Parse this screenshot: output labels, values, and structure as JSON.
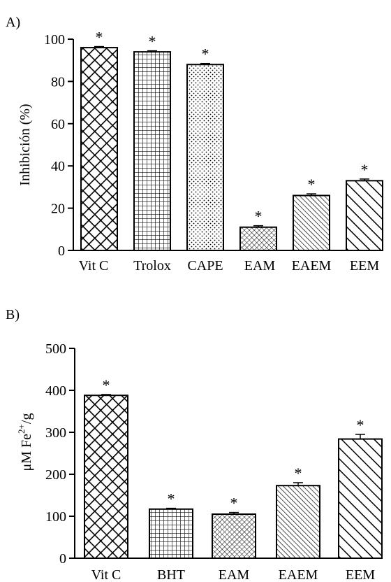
{
  "chart_data": [
    {
      "panel_label": "A)",
      "type": "bar",
      "ylabel": "Inhibición (%)",
      "ylim": [
        0,
        100
      ],
      "yticks": [
        0,
        20,
        40,
        60,
        80,
        100
      ],
      "categories": [
        "Vit C",
        "Trolox",
        "CAPE",
        "EAM",
        "EAEM",
        "EEM"
      ],
      "values": [
        96,
        94,
        88,
        11,
        26,
        33
      ],
      "errors": [
        0.5,
        0.5,
        0.5,
        0.7,
        0.8,
        0.8
      ],
      "significance": [
        "*",
        "*",
        "*",
        "*",
        "*",
        "*"
      ],
      "patterns": [
        "crosshatch",
        "grid",
        "dots",
        "fine-hatch",
        "diagonal-dense",
        "diagonal-wide"
      ]
    },
    {
      "panel_label": "B)",
      "type": "bar",
      "ylabel": "μM Fe2+/g",
      "ylabel_parts": {
        "base": "μM Fe",
        "sup": "2+",
        "tail": "/g"
      },
      "ylim": [
        0,
        500
      ],
      "yticks": [
        0,
        100,
        200,
        300,
        400,
        500
      ],
      "categories": [
        "Vit C",
        "BHT",
        "EAM",
        "EAEM",
        "EEM"
      ],
      "values": [
        388,
        117,
        105,
        173,
        284
      ],
      "errors": [
        2,
        2,
        4,
        7,
        11
      ],
      "significance": [
        "*",
        "*",
        "*",
        "*",
        "*"
      ],
      "patterns": [
        "crosshatch",
        "grid",
        "fine-hatch",
        "diagonal-dense",
        "diagonal-wide"
      ]
    }
  ]
}
